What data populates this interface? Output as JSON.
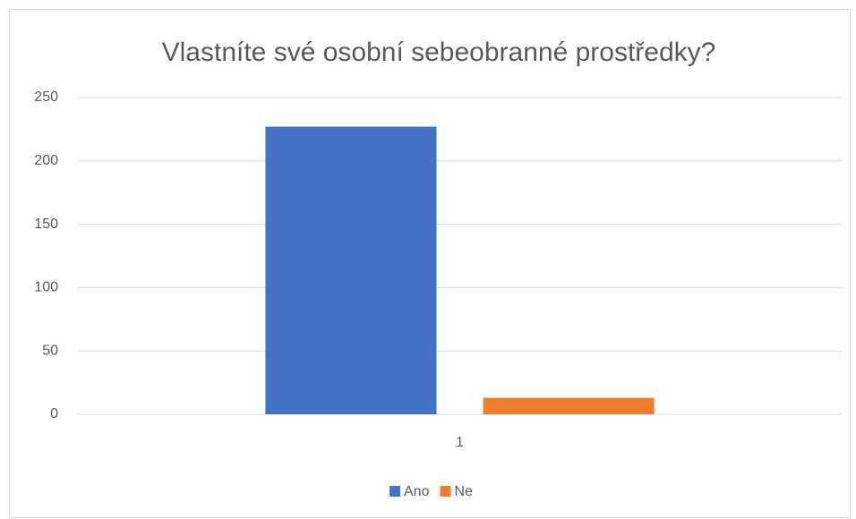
{
  "chart_data": {
    "type": "bar",
    "title": "Vlastníte své osobní sebeobranné prostředky?",
    "categories": [
      "1"
    ],
    "series": [
      {
        "name": "Ano",
        "color": "#4472c4",
        "values": [
          227
        ]
      },
      {
        "name": "Ne",
        "color": "#ed7d31",
        "values": [
          13
        ]
      }
    ],
    "ylim": [
      0,
      250
    ],
    "yticks": [
      0,
      50,
      100,
      150,
      200,
      250
    ],
    "grid": true,
    "legend": "bottom"
  }
}
